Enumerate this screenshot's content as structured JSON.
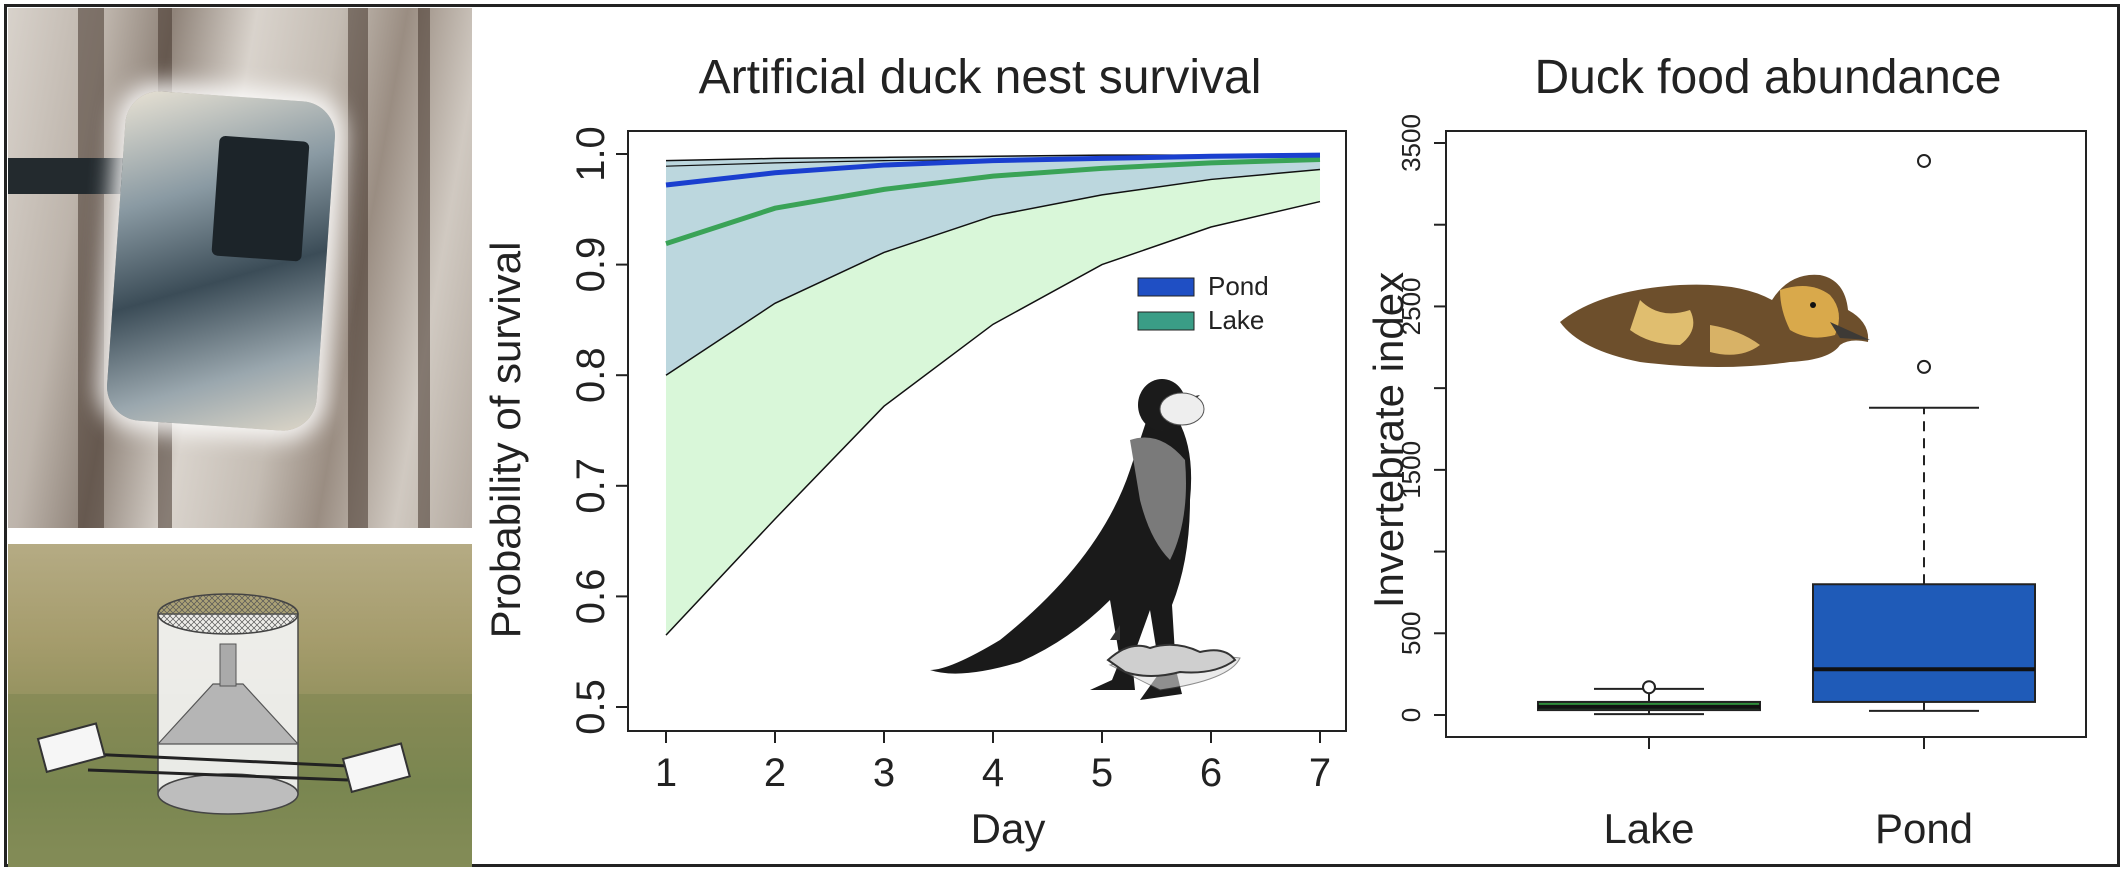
{
  "chart_data": [
    {
      "type": "line",
      "title": "Artificial duck nest survival",
      "xlabel": "Day",
      "ylabel": "Probability of survival",
      "xlim": [
        1,
        7
      ],
      "ylim": [
        0.5,
        1.0
      ],
      "x_ticks": [
        "1",
        "2",
        "3",
        "4",
        "5",
        "6",
        "7"
      ],
      "y_ticks": [
        "0.5",
        "0.6",
        "0.7",
        "0.8",
        "0.9",
        "1.0"
      ],
      "legend_position": "middle-right",
      "series": [
        {
          "name": "Pond",
          "color": "#1a3fcf",
          "x": [
            1,
            2,
            3,
            4,
            5,
            6,
            7
          ],
          "mean": [
            0.972,
            0.983,
            0.99,
            0.994,
            0.996,
            0.998,
            0.999
          ],
          "lower": [
            0.972,
            0.983,
            0.99,
            0.994,
            0.996,
            0.998,
            0.999
          ],
          "upper": [
            0.994,
            0.996,
            0.997,
            0.998,
            0.999,
            0.999,
            1.0
          ]
        },
        {
          "name": "Lake",
          "color": "#3aa357",
          "x": [
            1,
            2,
            3,
            4,
            5,
            6,
            7
          ],
          "mean": [
            0.919,
            0.951,
            0.968,
            0.98,
            0.987,
            0.992,
            0.995
          ],
          "lower": [
            0.565,
            0.67,
            0.772,
            0.846,
            0.9,
            0.934,
            0.957
          ],
          "upper": [
            0.989,
            0.992,
            0.994,
            0.995,
            0.996,
            0.997,
            0.998
          ],
          "ci_pond_lower": [
            0.8,
            0.865,
            0.911,
            0.944,
            0.963,
            0.977,
            0.986
          ]
        }
      ],
      "legend": [
        {
          "label": "Pond",
          "color": "#1f4fc4"
        },
        {
          "label": "Lake",
          "color": "#3a9d86"
        }
      ]
    },
    {
      "type": "box",
      "title": "Duck food abundance",
      "xlabel": "",
      "ylabel": "Invertebrate index",
      "ylim": [
        0,
        3500
      ],
      "categories": [
        "Lake",
        "Pond"
      ],
      "y_ticks": [
        "0",
        "500",
        "1500",
        "2500",
        "3500"
      ],
      "boxes": [
        {
          "name": "Lake",
          "color": "#2e8b3a",
          "whisker_low": 5,
          "q1": 30,
          "median": 50,
          "q3": 80,
          "whisker_high": 160,
          "outliers": [
            170
          ]
        },
        {
          "name": "Pond",
          "color": "#1f5bb8",
          "whisker_low": 25,
          "q1": 80,
          "median": 280,
          "q3": 800,
          "whisker_high": 1880,
          "outliers": [
            2130,
            3390
          ]
        }
      ]
    }
  ],
  "photos": {
    "camera_trap": "camera-trap-photo",
    "floating_nest": "floating-nest-trap-illustration",
    "crow": "hooded-crow-illustration",
    "duckling": "duckling-photo"
  }
}
